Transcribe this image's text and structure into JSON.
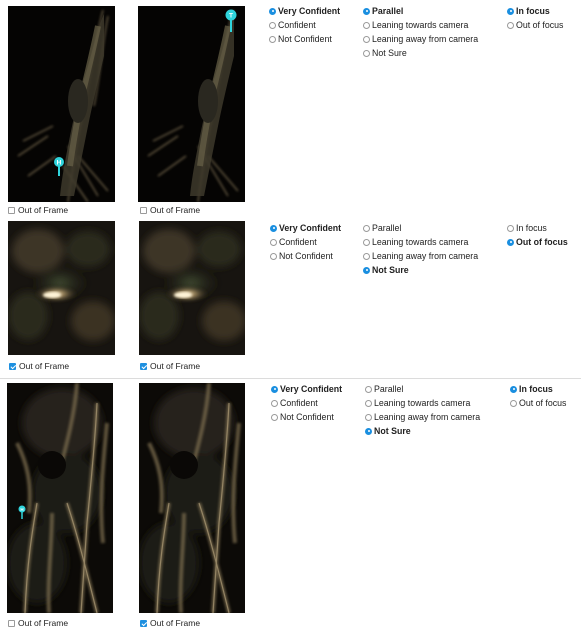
{
  "checkbox_label": "Out of Frame",
  "confidence_options": [
    "Very Confident",
    "Confident",
    "Not Confident"
  ],
  "orientation_options": [
    "Parallel",
    "Leaning towards camera",
    "Leaning away from camera",
    "Not Sure"
  ],
  "focus_options": [
    "In focus",
    "Out of focus"
  ],
  "markers": {
    "head": "H",
    "tail": "T"
  },
  "colors": {
    "accent": "#1a8fe0",
    "marker": "#2fd4dc",
    "image_bg": "#0a0806"
  },
  "rows": [
    {
      "left_out_of_frame": false,
      "right_out_of_frame": false,
      "confidence": "Very Confident",
      "orientation": "Parallel",
      "focus": "In focus"
    },
    {
      "left_out_of_frame": true,
      "right_out_of_frame": true,
      "confidence": "Very Confident",
      "orientation": "Not Sure",
      "focus": "Out of focus"
    },
    {
      "left_out_of_frame": false,
      "right_out_of_frame": true,
      "confidence": "Very Confident",
      "orientation": "Not Sure",
      "focus": "In focus"
    }
  ]
}
